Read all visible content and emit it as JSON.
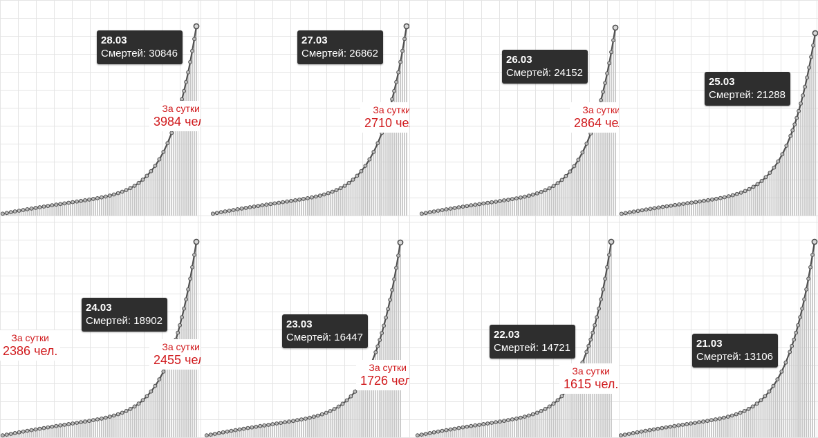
{
  "chart_data": [
    {
      "type": "bar",
      "tooltip": {
        "date": "28.03",
        "label": "Смертей:",
        "value": 30846
      },
      "daily": {
        "caption": "За сутки",
        "value": "3984",
        "unit": "чел."
      }
    },
    {
      "type": "bar",
      "tooltip": {
        "date": "27.03",
        "label": "Смертей:",
        "value": 26862
      },
      "daily": {
        "caption": "За сутки",
        "value": "2710",
        "unit": "чел."
      }
    },
    {
      "type": "bar",
      "tooltip": {
        "date": "26.03",
        "label": "Смертей:",
        "value": 24152
      },
      "daily": {
        "caption": "За сутки",
        "value": "2864",
        "unit": "чел."
      }
    },
    {
      "type": "bar",
      "tooltip": {
        "date": "25.03",
        "label": "Смертей:",
        "value": 21288
      },
      "daily": null
    },
    {
      "type": "bar",
      "tooltip": {
        "date": "24.03",
        "label": "Смертей:",
        "value": 18902
      },
      "daily": {
        "caption": "За сутки",
        "value": "2455",
        "unit": "чел."
      }
    },
    {
      "type": "bar",
      "tooltip": {
        "date": "23.03",
        "label": "Смертей:",
        "value": 16447
      },
      "daily": {
        "caption": "За сутки",
        "value": "1726",
        "unit": "чел."
      }
    },
    {
      "type": "bar",
      "tooltip": {
        "date": "22.03",
        "label": "Смертей:",
        "value": 14721
      },
      "daily": {
        "caption": "За сутки",
        "value": "1615",
        "unit": "чел."
      }
    },
    {
      "type": "bar",
      "tooltip": {
        "date": "21.03",
        "label": "Смертей:",
        "value": 13106
      },
      "daily": null
    }
  ],
  "between_panels_annotation": {
    "caption": "За сутки",
    "value": "2386",
    "unit": "чел."
  },
  "colors": {
    "grid": "#e4e4e4",
    "bar": "#c6c6c6",
    "line": "#4f4f4f",
    "tooltip_bg": "#2e2e2e",
    "annotation": "#d0191c"
  }
}
